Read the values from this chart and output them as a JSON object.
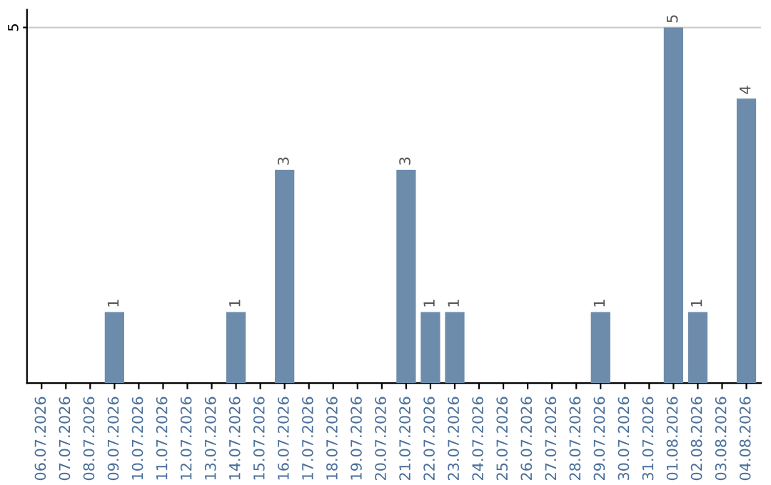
{
  "chart_data": {
    "type": "bar",
    "categories": [
      "06.07.2026",
      "07.07.2026",
      "08.07.2026",
      "09.07.2026",
      "10.07.2026",
      "11.07.2026",
      "12.07.2026",
      "13.07.2026",
      "14.07.2026",
      "15.07.2026",
      "16.07.2026",
      "17.07.2026",
      "18.07.2026",
      "19.07.2026",
      "20.07.2026",
      "21.07.2026",
      "22.07.2026",
      "23.07.2026",
      "24.07.2026",
      "25.07.2026",
      "26.07.2026",
      "27.07.2026",
      "28.07.2026",
      "29.07.2026",
      "30.07.2026",
      "31.07.2026",
      "01.08.2026",
      "02.08.2026",
      "03.08.2026",
      "04.08.2026"
    ],
    "values": [
      0,
      0,
      0,
      1,
      0,
      0,
      0,
      0,
      1,
      0,
      3,
      0,
      0,
      0,
      0,
      3,
      1,
      1,
      0,
      0,
      0,
      0,
      0,
      1,
      0,
      0,
      5,
      1,
      0,
      4
    ],
    "value_labels": [
      null,
      null,
      null,
      "1",
      null,
      null,
      null,
      null,
      "1",
      null,
      "3",
      null,
      null,
      null,
      null,
      "3",
      "1",
      "1",
      null,
      null,
      null,
      null,
      null,
      "1",
      null,
      null,
      "5",
      "1",
      null,
      "4"
    ],
    "color": "#6d8cab",
    "ylim": [
      0,
      5.25
    ],
    "yticks": [
      5
    ],
    "grid": "y"
  }
}
